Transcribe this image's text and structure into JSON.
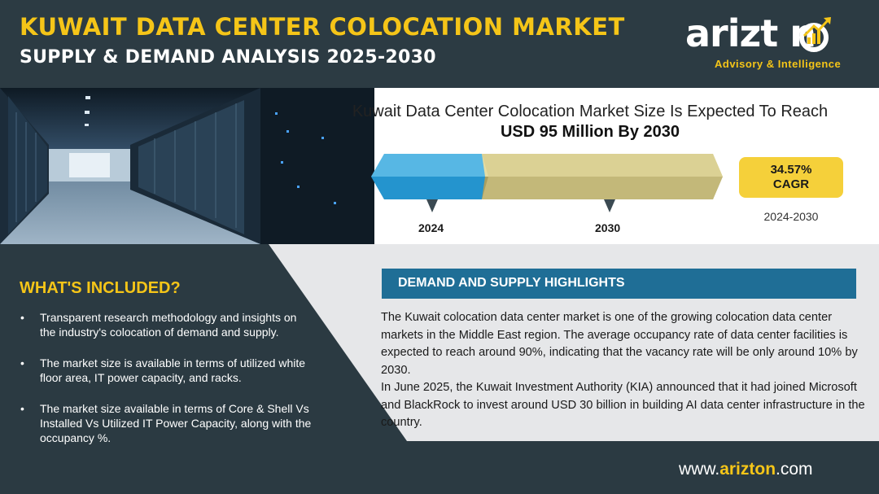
{
  "header": {
    "title": "KUWAIT DATA CENTER COLOCATION MARKET",
    "subtitle": "SUPPLY & DEMAND ANALYSIS 2025-2030"
  },
  "logo": {
    "wordmark": "arizt n",
    "tagline": "Advisory & Intelligence"
  },
  "market": {
    "headline": "Kuwait Data Center Colocation Market Size Is Expected To Reach",
    "value": "USD 95 Million By 2030",
    "start_year": "2024",
    "end_year": "2030",
    "cagr_value": "34.57%",
    "cagr_label": "CAGR",
    "cagr_period": "2024-2030"
  },
  "included": {
    "title": "WHAT'S INCLUDED?",
    "bullet_glyph": "•",
    "items": [
      "Transparent research methodology and insights on the industry's colocation of demand and supply.",
      "The market size is available in terms of utilized white floor area, IT power capacity, and racks.",
      "The market size available in terms of Core & Shell Vs Installed Vs Utilized IT Power Capacity, along with the occupancy %."
    ]
  },
  "highlights": {
    "title": "DEMAND AND SUPPLY HIGHLIGHTS",
    "paragraph1": "The Kuwait colocation data center market is one of the growing colocation data center markets in the Middle East region. The average occupancy rate of data center facilities is expected to reach around 90%, indicating that the vacancy rate will be only around 10% by 2030.",
    "paragraph2": "In June 2025, the Kuwait Investment Authority (KIA) announced that it had joined Microsoft and BlackRock to invest around USD 30 billion in building AI data center infrastructure in the country."
  },
  "footer": {
    "prefix": "www.",
    "brand": "arizton",
    "suffix": ".com"
  },
  "colors": {
    "background": "#2b3a42",
    "accent_yellow": "#f5c518",
    "highlight_blue": "#1f6e96",
    "bar_2024": "#2aa0d8",
    "bar_2030": "#d6c98a"
  }
}
